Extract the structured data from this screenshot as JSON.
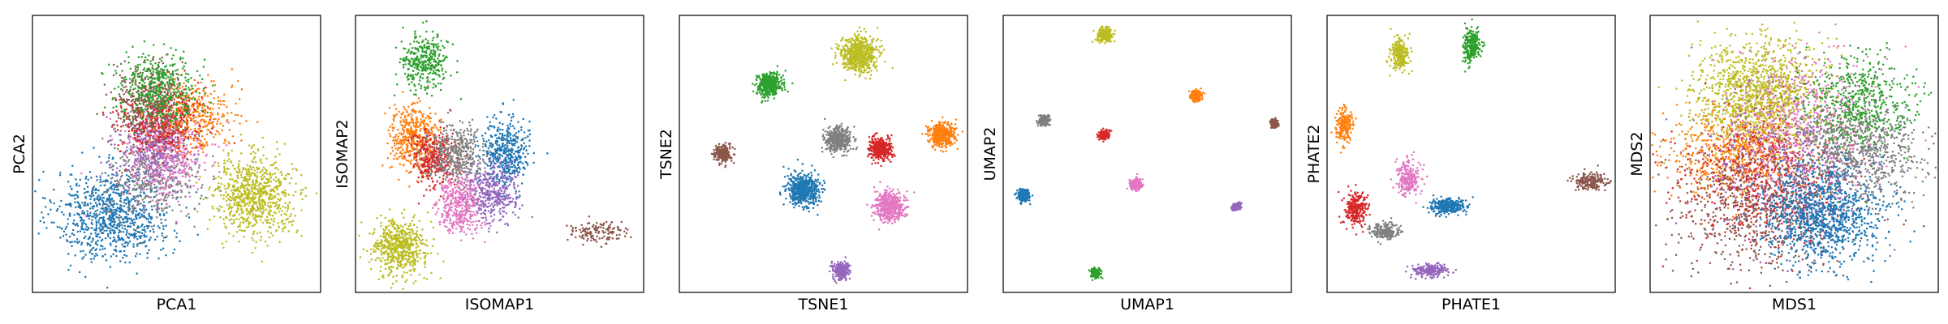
{
  "chart_data": [
    {
      "type": "scatter",
      "title": "",
      "xlabel": "PCA1",
      "ylabel": "PCA2",
      "xlim": [
        0,
        100
      ],
      "ylim": [
        0,
        100
      ],
      "grid": false,
      "legend": "none",
      "clusters": [
        {
          "color": "#1f77b4",
          "x": 28,
          "y": 28,
          "sx": 10,
          "sy": 8,
          "n": 900
        },
        {
          "color": "#7f7f7f",
          "x": 42,
          "y": 42,
          "sx": 8,
          "sy": 8,
          "n": 450
        },
        {
          "color": "#e377c2",
          "x": 46,
          "y": 50,
          "sx": 7,
          "sy": 8,
          "n": 500
        },
        {
          "color": "#9467bd",
          "x": 42,
          "y": 54,
          "sx": 6,
          "sy": 7,
          "n": 380
        },
        {
          "color": "#ff7f0e",
          "x": 56,
          "y": 64,
          "sx": 7,
          "sy": 6,
          "n": 400
        },
        {
          "color": "#d62728",
          "x": 44,
          "y": 62,
          "sx": 7,
          "sy": 6,
          "n": 400
        },
        {
          "color": "#8c564b",
          "x": 40,
          "y": 70,
          "sx": 6,
          "sy": 6,
          "n": 350
        },
        {
          "color": "#2ca02c",
          "x": 44,
          "y": 74,
          "sx": 7,
          "sy": 6,
          "n": 450
        },
        {
          "color": "#bcbd22",
          "x": 77,
          "y": 35,
          "sx": 7,
          "sy": 7,
          "n": 800
        }
      ]
    },
    {
      "type": "scatter",
      "title": "",
      "xlabel": "ISOMAP1",
      "ylabel": "ISOMAP2",
      "xlim": [
        0,
        100
      ],
      "ylim": [
        0,
        100
      ],
      "grid": false,
      "legend": "none",
      "clusters": [
        {
          "color": "#2ca02c",
          "x": 24,
          "y": 83,
          "sx": 4,
          "sy": 5,
          "n": 350
        },
        {
          "color": "#ff7f0e",
          "x": 20,
          "y": 56,
          "sx": 4,
          "sy": 6,
          "n": 450
        },
        {
          "color": "#d62728",
          "x": 27,
          "y": 48,
          "sx": 4,
          "sy": 5,
          "n": 350
        },
        {
          "color": "#7f7f7f",
          "x": 35,
          "y": 50,
          "sx": 5,
          "sy": 5,
          "n": 400
        },
        {
          "color": "#1f77b4",
          "x": 52,
          "y": 50,
          "sx": 4,
          "sy": 6,
          "n": 450
        },
        {
          "color": "#e377c2",
          "x": 36,
          "y": 32,
          "sx": 4,
          "sy": 5,
          "n": 420
        },
        {
          "color": "#9467bd",
          "x": 48,
          "y": 36,
          "sx": 4,
          "sy": 5,
          "n": 380
        },
        {
          "color": "#bcbd22",
          "x": 15,
          "y": 16,
          "sx": 5,
          "sy": 5,
          "n": 600
        },
        {
          "color": "#8c564b",
          "x": 83,
          "y": 22,
          "sx": 5,
          "sy": 2,
          "n": 140
        }
      ]
    },
    {
      "type": "scatter",
      "title": "",
      "xlabel": "TSNE1",
      "ylabel": "TSNE2",
      "xlim": [
        0,
        100
      ],
      "ylim": [
        0,
        100
      ],
      "grid": false,
      "legend": "none",
      "clusters": [
        {
          "color": "#bcbd22",
          "x": 62,
          "y": 86,
          "sx": 3.2,
          "sy": 3.2,
          "n": 650
        },
        {
          "color": "#2ca02c",
          "x": 31,
          "y": 75,
          "sx": 2.2,
          "sy": 2.2,
          "n": 400
        },
        {
          "color": "#ff7f0e",
          "x": 91,
          "y": 57,
          "sx": 2.2,
          "sy": 2.2,
          "n": 400
        },
        {
          "color": "#7f7f7f",
          "x": 55,
          "y": 55,
          "sx": 2.2,
          "sy": 2.2,
          "n": 400
        },
        {
          "color": "#d62728",
          "x": 70,
          "y": 52,
          "sx": 2.0,
          "sy": 2.0,
          "n": 380
        },
        {
          "color": "#8c564b",
          "x": 15,
          "y": 50,
          "sx": 1.5,
          "sy": 1.5,
          "n": 250
        },
        {
          "color": "#1f77b4",
          "x": 43,
          "y": 37,
          "sx": 2.8,
          "sy": 2.8,
          "n": 600
        },
        {
          "color": "#e377c2",
          "x": 73,
          "y": 31,
          "sx": 2.6,
          "sy": 2.6,
          "n": 500
        },
        {
          "color": "#9467bd",
          "x": 56,
          "y": 8,
          "sx": 1.5,
          "sy": 1.5,
          "n": 250
        }
      ]
    },
    {
      "type": "scatter",
      "title": "",
      "xlabel": "UMAP1",
      "ylabel": "UMAP2",
      "xlim": [
        0,
        100
      ],
      "ylim": [
        0,
        100
      ],
      "grid": false,
      "legend": "none",
      "clusters": [
        {
          "color": "#bcbd22",
          "x": 35,
          "y": 93,
          "sx": 1.2,
          "sy": 1.2,
          "n": 300
        },
        {
          "color": "#ff7f0e",
          "x": 67,
          "y": 71,
          "sx": 0.9,
          "sy": 0.9,
          "n": 200
        },
        {
          "color": "#7f7f7f",
          "x": 14,
          "y": 62,
          "sx": 0.9,
          "sy": 0.9,
          "n": 200
        },
        {
          "color": "#d62728",
          "x": 35,
          "y": 57,
          "sx": 0.8,
          "sy": 0.8,
          "n": 180
        },
        {
          "color": "#8c564b",
          "x": 94,
          "y": 61,
          "sx": 0.7,
          "sy": 0.7,
          "n": 150
        },
        {
          "color": "#e377c2",
          "x": 46,
          "y": 39,
          "sx": 1.0,
          "sy": 1.0,
          "n": 220
        },
        {
          "color": "#1f77b4",
          "x": 7,
          "y": 35,
          "sx": 1.1,
          "sy": 1.1,
          "n": 220
        },
        {
          "color": "#9467bd",
          "x": 81,
          "y": 31,
          "sx": 0.7,
          "sy": 0.7,
          "n": 150
        },
        {
          "color": "#2ca02c",
          "x": 32,
          "y": 7,
          "sx": 0.9,
          "sy": 0.9,
          "n": 180
        }
      ]
    },
    {
      "type": "scatter",
      "title": "",
      "xlabel": "PHATE1",
      "ylabel": "PHATE2",
      "xlim": [
        0,
        100
      ],
      "ylim": [
        0,
        100
      ],
      "grid": false,
      "legend": "none",
      "clusters": [
        {
          "color": "#2ca02c",
          "x": 50,
          "y": 89,
          "sx": 1.5,
          "sy": 3,
          "n": 250
        },
        {
          "color": "#bcbd22",
          "x": 25,
          "y": 86,
          "sx": 1.5,
          "sy": 3,
          "n": 250
        },
        {
          "color": "#ff7f0e",
          "x": 6,
          "y": 60,
          "sx": 1.5,
          "sy": 3,
          "n": 200
        },
        {
          "color": "#e377c2",
          "x": 28,
          "y": 41,
          "sx": 2,
          "sy": 3,
          "n": 250
        },
        {
          "color": "#1f77b4",
          "x": 42,
          "y": 31,
          "sx": 3,
          "sy": 1.5,
          "n": 300
        },
        {
          "color": "#d62728",
          "x": 10,
          "y": 30,
          "sx": 2,
          "sy": 3,
          "n": 250
        },
        {
          "color": "#7f7f7f",
          "x": 20,
          "y": 22,
          "sx": 2.5,
          "sy": 1.5,
          "n": 200
        },
        {
          "color": "#9467bd",
          "x": 36,
          "y": 8,
          "sx": 3,
          "sy": 1.2,
          "n": 200
        },
        {
          "color": "#8c564b",
          "x": 91,
          "y": 40,
          "sx": 3,
          "sy": 1.5,
          "n": 200
        }
      ]
    },
    {
      "type": "scatter",
      "title": "",
      "xlabel": "MDS1",
      "ylabel": "MDS2",
      "xlim": [
        0,
        100
      ],
      "ylim": [
        0,
        100
      ],
      "grid": false,
      "legend": "none",
      "clusters": [
        {
          "color": "#bcbd22",
          "x": 38,
          "y": 71,
          "sx": 11,
          "sy": 10,
          "n": 1300
        },
        {
          "color": "#ff7f0e",
          "x": 30,
          "y": 50,
          "sx": 12,
          "sy": 8,
          "n": 700
        },
        {
          "color": "#d62728",
          "x": 42,
          "y": 40,
          "sx": 14,
          "sy": 12,
          "n": 650
        },
        {
          "color": "#8c564b",
          "x": 36,
          "y": 30,
          "sx": 14,
          "sy": 12,
          "n": 650
        },
        {
          "color": "#9467bd",
          "x": 50,
          "y": 45,
          "sx": 15,
          "sy": 14,
          "n": 500
        },
        {
          "color": "#e377c2",
          "x": 55,
          "y": 62,
          "sx": 13,
          "sy": 12,
          "n": 550
        },
        {
          "color": "#2ca02c",
          "x": 72,
          "y": 68,
          "sx": 9,
          "sy": 9,
          "n": 600
        },
        {
          "color": "#7f7f7f",
          "x": 73,
          "y": 50,
          "sx": 11,
          "sy": 8,
          "n": 650
        },
        {
          "color": "#1f77b4",
          "x": 60,
          "y": 28,
          "sx": 10,
          "sy": 9,
          "n": 1100
        }
      ]
    }
  ]
}
